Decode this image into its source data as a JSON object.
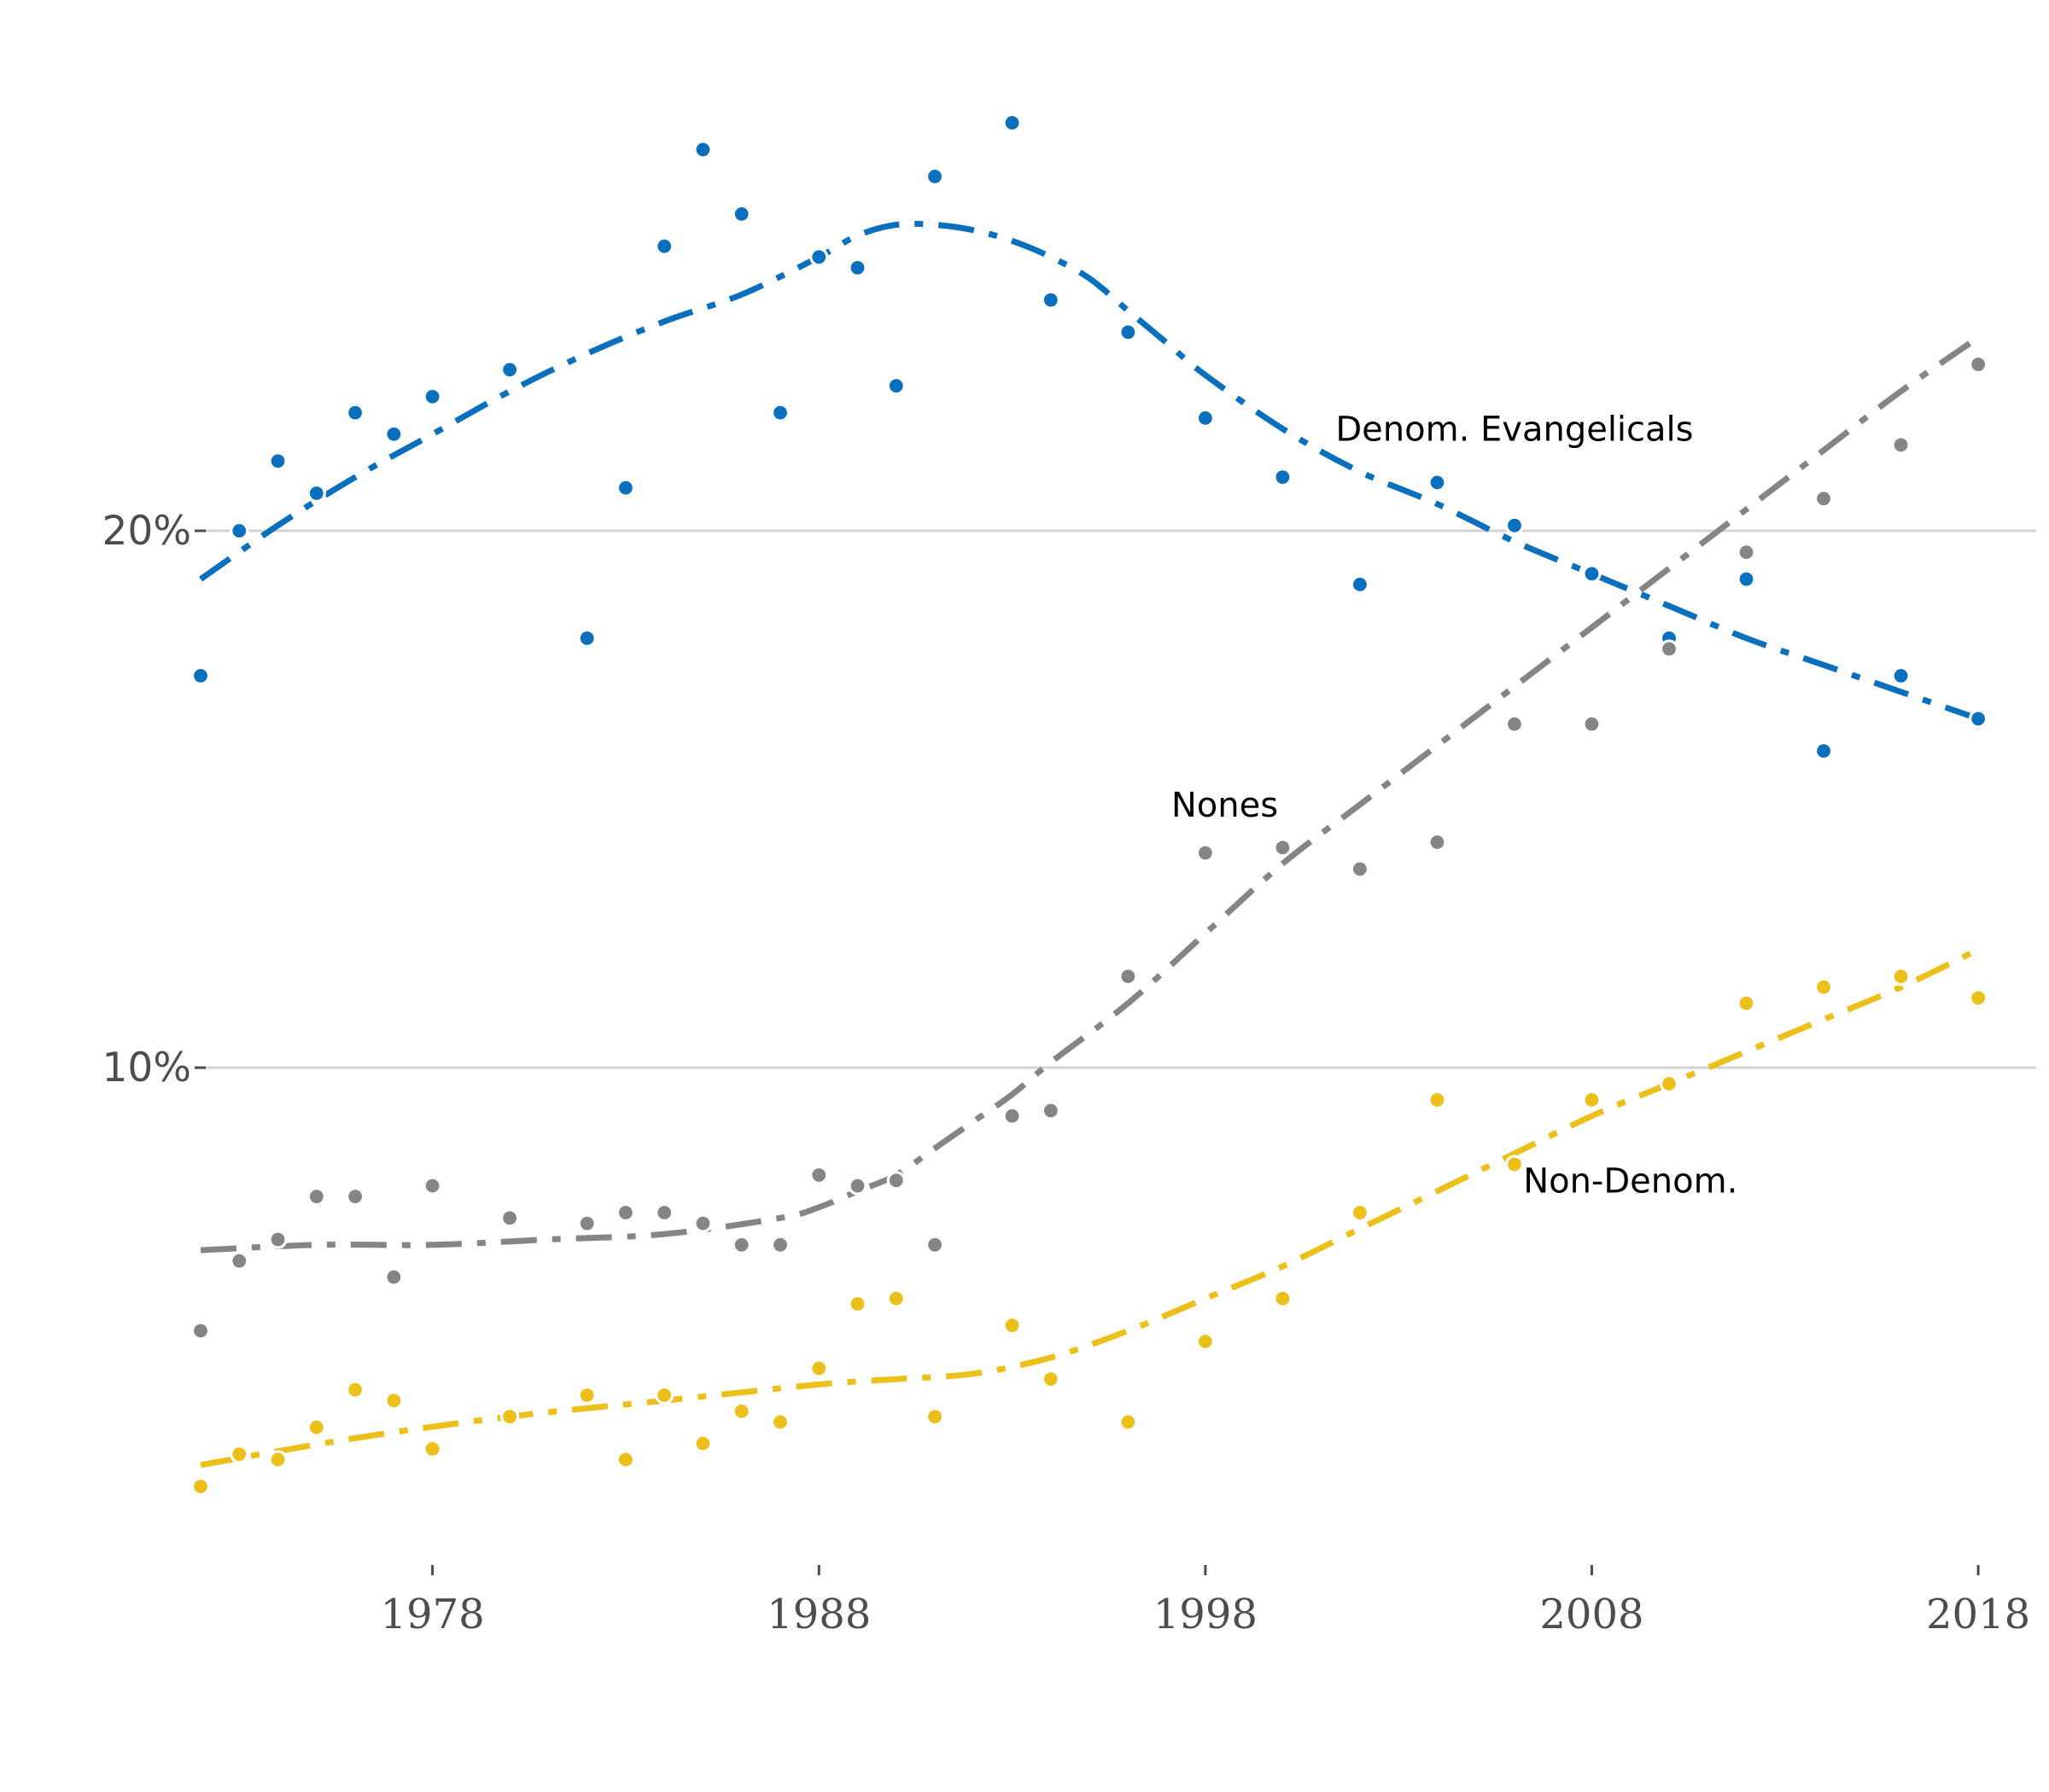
{
  "chart_data": {
    "type": "scatter",
    "title": "",
    "xlabel": "",
    "ylabel": "",
    "xlim": [
      1972,
      2019.5
    ],
    "ylim": [
      0.8,
      27.9
    ],
    "x_ticks": [
      1978,
      1988,
      1998,
      2008,
      2018
    ],
    "x_tick_labels": [
      "1978",
      "1988",
      "1998",
      "2008",
      "2018"
    ],
    "y_ticks": [
      10,
      20
    ],
    "y_tick_labels": [
      "10%",
      "20%"
    ],
    "grid": "horizontal",
    "legend": "none",
    "series": [
      {
        "name": "Denom. Evangelicals",
        "color": "#0a6fbd",
        "x": [
          1972,
          1973,
          1974,
          1975,
          1976,
          1977,
          1978,
          1980,
          1982,
          1983,
          1984,
          1985,
          1986,
          1987,
          1988,
          1989,
          1990,
          1991,
          1993,
          1994,
          1996,
          1998,
          2000,
          2002,
          2004,
          2006,
          2008,
          2010,
          2012,
          2014,
          2016,
          2018
        ],
        "y": [
          17.3,
          20.0,
          21.3,
          20.7,
          22.2,
          21.8,
          22.5,
          23.0,
          18.0,
          20.8,
          25.3,
          27.1,
          25.9,
          22.2,
          25.1,
          24.9,
          22.7,
          26.6,
          27.6,
          24.3,
          23.7,
          22.1,
          21.0,
          19.0,
          20.9,
          20.1,
          19.2,
          18.0,
          19.1,
          15.9,
          17.3,
          16.5
        ],
        "trend_x": [
          1972,
          1974,
          1976,
          1978,
          1980,
          1982,
          1984,
          1986,
          1988,
          1989,
          1990,
          1991,
          1992,
          1993,
          1994,
          1995,
          1996,
          1997,
          1998,
          2000,
          2002,
          2004,
          2006,
          2008,
          2010,
          2012,
          2014,
          2016,
          2018
        ],
        "trend_y": [
          19.1,
          20.1,
          21.0,
          21.8,
          22.6,
          23.3,
          23.9,
          24.4,
          25.1,
          25.5,
          25.7,
          25.7,
          25.6,
          25.4,
          25.1,
          24.7,
          24.1,
          23.5,
          22.9,
          21.9,
          21.1,
          20.5,
          19.8,
          19.2,
          18.6,
          18.0,
          17.5,
          17.0,
          16.5
        ],
        "label": "Denom. Evangelicals"
      },
      {
        "name": "Nones",
        "color": "#858585",
        "x": [
          1972,
          1973,
          1974,
          1975,
          1976,
          1977,
          1978,
          1980,
          1982,
          1983,
          1984,
          1985,
          1986,
          1987,
          1988,
          1989,
          1990,
          1991,
          1993,
          1994,
          1996,
          1998,
          2000,
          2002,
          2004,
          2006,
          2008,
          2010,
          2012,
          2014,
          2016,
          2018
        ],
        "y": [
          5.1,
          6.4,
          6.8,
          7.6,
          7.6,
          6.1,
          7.8,
          7.2,
          7.1,
          7.3,
          7.3,
          7.1,
          6.7,
          6.7,
          8.0,
          7.8,
          7.9,
          6.7,
          9.1,
          9.2,
          11.7,
          14.0,
          14.1,
          13.7,
          14.2,
          16.4,
          16.4,
          17.8,
          19.6,
          20.6,
          21.6,
          23.1
        ],
        "trend_x": [
          1972,
          1975,
          1978,
          1981,
          1984,
          1987,
          1988,
          1989,
          1990,
          1991,
          1992,
          1993,
          1994,
          1996,
          1998,
          2000,
          2002,
          2004,
          2006,
          2008,
          2010,
          2012,
          2014,
          2016,
          2018
        ],
        "trend_y": [
          6.6,
          6.7,
          6.7,
          6.8,
          6.9,
          7.2,
          7.4,
          7.7,
          8.0,
          8.5,
          9.0,
          9.5,
          10.1,
          11.2,
          12.5,
          13.8,
          14.9,
          16.0,
          17.1,
          18.2,
          19.3,
          20.4,
          21.5,
          22.6,
          23.6
        ],
        "label": "Nones"
      },
      {
        "name": "Non-Denom.",
        "color": "#ecc01a",
        "x": [
          1972,
          1973,
          1974,
          1975,
          1976,
          1977,
          1978,
          1980,
          1982,
          1983,
          1984,
          1985,
          1986,
          1987,
          1988,
          1989,
          1990,
          1991,
          1993,
          1994,
          1996,
          1998,
          2000,
          2002,
          2004,
          2006,
          2008,
          2010,
          2012,
          2014,
          2016,
          2018
        ],
        "y": [
          2.2,
          2.8,
          2.7,
          3.3,
          4.0,
          3.8,
          2.9,
          3.5,
          3.9,
          2.7,
          3.9,
          3.0,
          3.6,
          3.4,
          4.4,
          5.6,
          5.7,
          3.5,
          5.2,
          4.2,
          3.4,
          4.9,
          5.7,
          7.3,
          9.4,
          8.2,
          9.4,
          9.7,
          11.2,
          11.5,
          11.7,
          11.3
        ],
        "trend_x": [
          1972,
          1976,
          1980,
          1984,
          1988,
          1990,
          1992,
          1994,
          1996,
          1998,
          2000,
          2002,
          2004,
          2006,
          2008,
          2010,
          2012,
          2014,
          2016,
          2018
        ],
        "trend_y": [
          2.6,
          3.1,
          3.5,
          3.8,
          4.1,
          4.2,
          4.3,
          4.6,
          5.1,
          5.7,
          6.3,
          7.0,
          7.7,
          8.4,
          9.1,
          9.7,
          10.3,
          10.9,
          11.5,
          12.2
        ],
        "label": "Non-Denom."
      }
    ],
    "annotations": [
      {
        "text": "Denom. Evangelicals",
        "x": 2006.0,
        "y": 21.9
      },
      {
        "text": "Nones",
        "x": 1998.5,
        "y": 14.9
      },
      {
        "text": "Non-Denom.",
        "x": 2009.0,
        "y": 7.9
      }
    ]
  }
}
